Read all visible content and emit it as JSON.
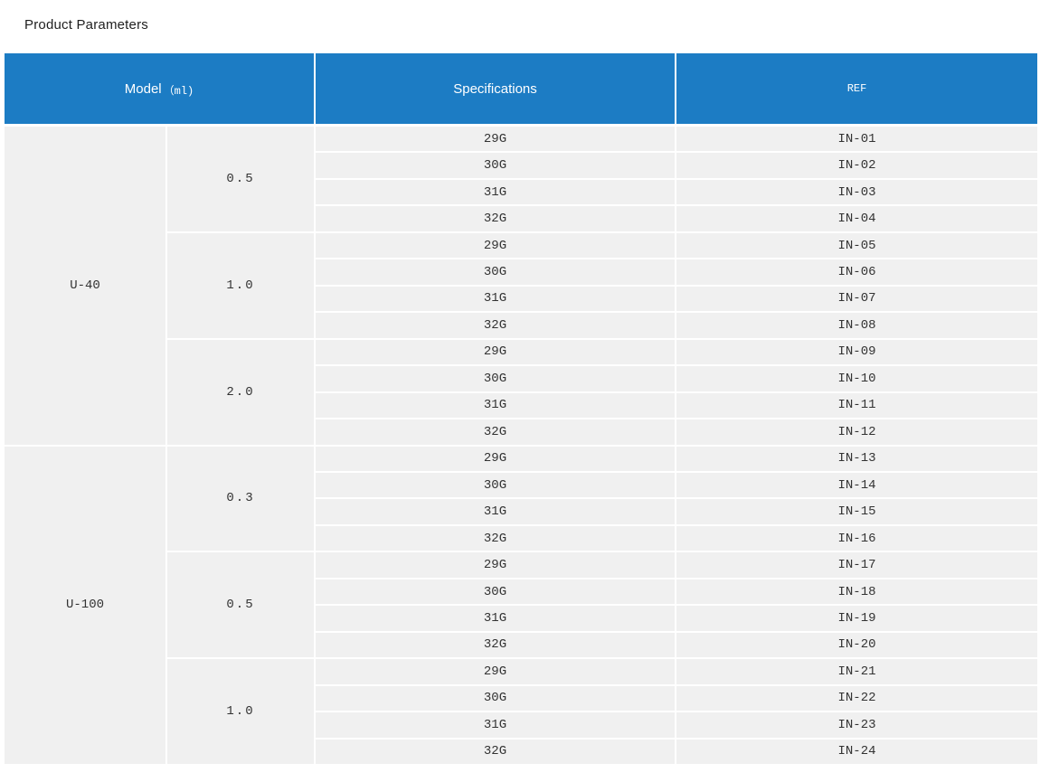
{
  "page": {
    "title": "Product Parameters"
  },
  "colors": {
    "header_bg": "#1c7cc4",
    "header_text": "#ffffff",
    "cell_bg": "#f0f0f0",
    "cell_text": "#333333",
    "page_bg": "#ffffff"
  },
  "table": {
    "headers": [
      {
        "label": "Model（ml)",
        "label_main": "Model",
        "label_unit": "（ml)"
      },
      {
        "label": "Specifications"
      },
      {
        "label": "REF"
      }
    ],
    "sections": [
      {
        "model": "U-40",
        "groups": [
          {
            "volume": "0.5",
            "rows": [
              {
                "spec": "29G",
                "ref": "IN-01"
              },
              {
                "spec": "30G",
                "ref": "IN-02"
              },
              {
                "spec": "31G",
                "ref": "IN-03"
              },
              {
                "spec": "32G",
                "ref": "IN-04"
              }
            ]
          },
          {
            "volume": "1.0",
            "rows": [
              {
                "spec": "29G",
                "ref": "IN-05"
              },
              {
                "spec": "30G",
                "ref": "IN-06"
              },
              {
                "spec": "31G",
                "ref": "IN-07"
              },
              {
                "spec": "32G",
                "ref": "IN-08"
              }
            ]
          },
          {
            "volume": "2.0",
            "rows": [
              {
                "spec": "29G",
                "ref": "IN-09"
              },
              {
                "spec": "30G",
                "ref": "IN-10"
              },
              {
                "spec": "31G",
                "ref": "IN-11"
              },
              {
                "spec": "32G",
                "ref": "IN-12"
              }
            ]
          }
        ]
      },
      {
        "model": "U-100",
        "groups": [
          {
            "volume": "0.3",
            "rows": [
              {
                "spec": "29G",
                "ref": "IN-13"
              },
              {
                "spec": "30G",
                "ref": "IN-14"
              },
              {
                "spec": "31G",
                "ref": "IN-15"
              },
              {
                "spec": "32G",
                "ref": "IN-16"
              }
            ]
          },
          {
            "volume": "0.5",
            "rows": [
              {
                "spec": "29G",
                "ref": "IN-17"
              },
              {
                "spec": "30G",
                "ref": "IN-18"
              },
              {
                "spec": "31G",
                "ref": "IN-19"
              },
              {
                "spec": "32G",
                "ref": "IN-20"
              }
            ]
          },
          {
            "volume": "1.0",
            "rows": [
              {
                "spec": "29G",
                "ref": "IN-21"
              },
              {
                "spec": "30G",
                "ref": "IN-22"
              },
              {
                "spec": "31G",
                "ref": "IN-23"
              },
              {
                "spec": "32G",
                "ref": "IN-24"
              }
            ]
          }
        ]
      }
    ]
  }
}
